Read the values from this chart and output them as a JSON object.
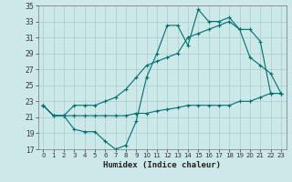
{
  "xlabel": "Humidex (Indice chaleur)",
  "ylabel": "",
  "background_color": "#cce8e8",
  "grid_color": "#aacccc",
  "line_color": "#007070",
  "xlim": [
    -0.5,
    23.5
  ],
  "ylim": [
    17,
    35
  ],
  "yticks": [
    17,
    19,
    21,
    23,
    25,
    27,
    29,
    31,
    33,
    35
  ],
  "xticks": [
    0,
    1,
    2,
    3,
    4,
    5,
    6,
    7,
    8,
    9,
    10,
    11,
    12,
    13,
    14,
    15,
    16,
    17,
    18,
    19,
    20,
    21,
    22,
    23
  ],
  "line1_x": [
    0,
    1,
    2,
    3,
    4,
    5,
    6,
    7,
    8,
    9,
    10,
    11,
    12,
    13,
    14,
    15,
    16,
    17,
    18,
    19,
    20,
    21,
    22,
    23
  ],
  "line1_y": [
    22.5,
    21.2,
    21.2,
    19.5,
    19.2,
    19.2,
    18.0,
    17.0,
    17.5,
    20.5,
    26.0,
    29.0,
    32.5,
    32.5,
    30.0,
    34.5,
    33.0,
    33.0,
    33.5,
    32.0,
    28.5,
    27.5,
    26.5,
    24.0
  ],
  "line2_x": [
    0,
    1,
    2,
    3,
    4,
    5,
    6,
    7,
    8,
    9,
    10,
    11,
    12,
    13,
    14,
    15,
    16,
    17,
    18,
    19,
    20,
    21,
    22,
    23
  ],
  "line2_y": [
    22.5,
    21.2,
    21.2,
    22.5,
    22.5,
    22.5,
    23.0,
    23.5,
    24.5,
    26.0,
    27.5,
    28.0,
    28.5,
    29.0,
    31.0,
    31.5,
    32.0,
    32.5,
    33.0,
    32.0,
    32.0,
    30.5,
    24.0,
    24.0
  ],
  "line3_x": [
    0,
    1,
    2,
    3,
    4,
    5,
    6,
    7,
    8,
    9,
    10,
    11,
    12,
    13,
    14,
    15,
    16,
    17,
    18,
    19,
    20,
    21,
    22,
    23
  ],
  "line3_y": [
    22.5,
    21.2,
    21.2,
    21.2,
    21.2,
    21.2,
    21.2,
    21.2,
    21.2,
    21.5,
    21.5,
    21.8,
    22.0,
    22.2,
    22.5,
    22.5,
    22.5,
    22.5,
    22.5,
    23.0,
    23.0,
    23.5,
    24.0,
    24.0
  ]
}
